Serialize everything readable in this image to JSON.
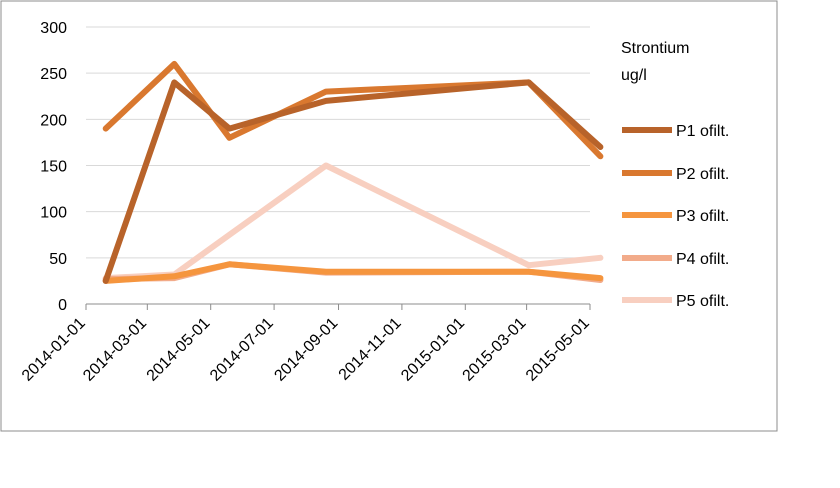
{
  "chart_data": {
    "type": "line",
    "legend_title": [
      "Strontium",
      "ug/l"
    ],
    "legend_position": "right",
    "x_tick_labels": [
      "2014-01-01",
      "2014-03-01",
      "2014-05-01",
      "2014-07-01",
      "2014-09-01",
      "2014-11-01",
      "2015-01-01",
      "2015-03-01",
      "2015-05-01"
    ],
    "x_dates": [
      "2014-01-20",
      "2014-03-27",
      "2014-05-19",
      "2014-08-20",
      "2015-03-03",
      "2015-05-11"
    ],
    "ylim": [
      0,
      300
    ],
    "y_ticks": [
      0,
      50,
      100,
      150,
      200,
      250,
      300
    ],
    "grid": "horizontal",
    "series": [
      {
        "name": "P1 ofilt.",
        "color": "#b8632a",
        "values": [
          25,
          240,
          190,
          220,
          240,
          170
        ]
      },
      {
        "name": "P2 ofilt.",
        "color": "#d9782f",
        "values": [
          190,
          260,
          180,
          230,
          240,
          160
        ]
      },
      {
        "name": "P3 ofilt.",
        "color": "#f5953e",
        "values": [
          25,
          30,
          43,
          35,
          35,
          28
        ]
      },
      {
        "name": "P4 ofilt.",
        "color": "#f2ab8a",
        "values": [
          27,
          28,
          43,
          34,
          35,
          26
        ]
      },
      {
        "name": "P5 ofilt.",
        "color": "#f8cfc0",
        "values": [
          28,
          32,
          75,
          150,
          42,
          50
        ]
      }
    ]
  }
}
